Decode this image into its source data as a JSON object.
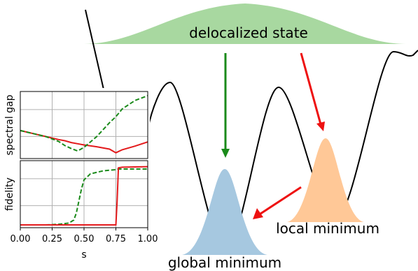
{
  "labels": {
    "delocalized": "delocalized state",
    "global_min": "global minimum",
    "local_min": "local minimum"
  },
  "colors": {
    "delocalized_fill": "#a8d8a0",
    "global_fill": "#a6c8e0",
    "local_fill": "#ffc897",
    "green_arrow": "#1a8a1a",
    "red_arrow": "#ee1111",
    "curve": "#000000",
    "dashed_line": "#1a8a1a",
    "solid_line": "#e31a1c",
    "grid": "#b0b0b0"
  },
  "chart_data": [
    {
      "type": "line",
      "ylabel": "spectral gap",
      "xlim": [
        0.0,
        1.0
      ],
      "x": [
        0.0,
        0.1,
        0.2,
        0.3,
        0.35,
        0.4,
        0.45,
        0.5,
        0.6,
        0.7,
        0.75,
        0.8,
        0.9,
        1.0
      ],
      "series": [
        {
          "style": "solid",
          "color": "#e31a1c",
          "values": [
            0.42,
            0.37,
            0.32,
            0.27,
            0.25,
            0.22,
            0.2,
            0.18,
            0.15,
            0.11,
            0.05,
            0.1,
            0.16,
            0.23
          ]
        },
        {
          "style": "dashed",
          "color": "#1a8a1a",
          "values": [
            0.42,
            0.37,
            0.32,
            0.24,
            0.17,
            0.12,
            0.08,
            0.14,
            0.32,
            0.55,
            0.65,
            0.78,
            0.92,
            1.0
          ]
        }
      ],
      "grid": true
    },
    {
      "type": "line",
      "ylabel": "fidelity",
      "xlabel": "s",
      "xlim": [
        0.0,
        1.0
      ],
      "xticks": [
        "0.00",
        "0.25",
        "0.50",
        "0.75",
        "1.00"
      ],
      "x": [
        0.0,
        0.2,
        0.3,
        0.38,
        0.42,
        0.44,
        0.46,
        0.48,
        0.5,
        0.55,
        0.65,
        0.75,
        0.76,
        0.77,
        0.8,
        1.0
      ],
      "series": [
        {
          "style": "dashed",
          "color": "#1a8a1a",
          "values": [
            0.0,
            0.0,
            0.01,
            0.03,
            0.08,
            0.2,
            0.4,
            0.6,
            0.75,
            0.85,
            0.9,
            0.92,
            0.93,
            0.93,
            0.93,
            0.93
          ]
        },
        {
          "style": "solid",
          "color": "#e31a1c",
          "values": [
            0.0,
            0.0,
            0.0,
            0.0,
            0.0,
            0.0,
            0.0,
            0.0,
            0.0,
            0.0,
            0.0,
            0.0,
            0.4,
            0.95,
            0.96,
            0.97
          ]
        }
      ],
      "grid": true
    }
  ]
}
